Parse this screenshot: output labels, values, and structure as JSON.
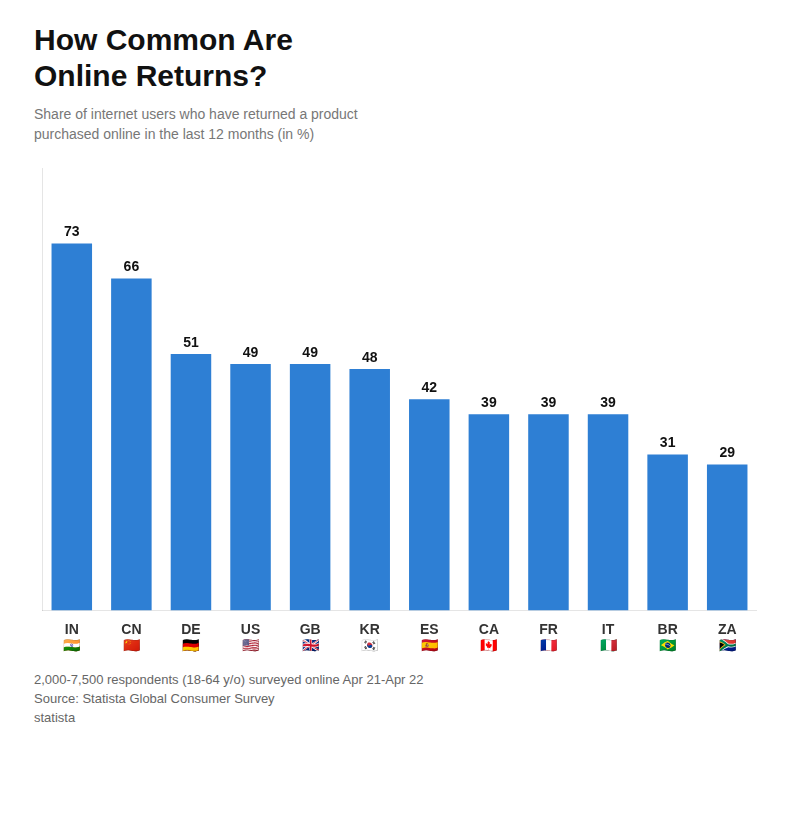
{
  "chart_data": {
    "type": "bar",
    "title": "How Common Are\nOnline Returns?",
    "subtitle": "Share of internet users who have returned a product\npurchased online in the last 12 months (in %)",
    "categories": [
      "IN",
      "CN",
      "DE",
      "US",
      "GB",
      "KR",
      "ES",
      "CA",
      "FR",
      "IT",
      "BR",
      "ZA"
    ],
    "values": [
      73,
      66,
      51,
      49,
      49,
      48,
      42,
      39,
      39,
      39,
      31,
      29
    ],
    "color": "#2E7FD4",
    "ylim": [
      0,
      88
    ],
    "yticks": [],
    "grid": false,
    "data_labels": true,
    "tick_labels": "x",
    "annotations": [
      {
        "text": "🇮🇳",
        "category": "IN"
      },
      {
        "text": "🇨🇳",
        "category": "CN"
      },
      {
        "text": "🇩🇪",
        "category": "DE"
      },
      {
        "text": "🇺🇸",
        "category": "US"
      },
      {
        "text": "🇬🇧",
        "category": "GB"
      },
      {
        "text": "🇰🇷",
        "category": "KR"
      },
      {
        "text": "🇪🇸",
        "category": "ES"
      },
      {
        "text": "🇨🇦",
        "category": "CA"
      },
      {
        "text": "🇫🇷",
        "category": "FR"
      },
      {
        "text": "🇮🇹",
        "category": "IT"
      },
      {
        "text": "🇧🇷",
        "category": "BR"
      },
      {
        "text": "🇿🇦",
        "category": "ZA"
      },
      {
        "text": "2,000-7,500 respondents (18-64 y/o) surveyed online Apr 21-Apr 22"
      },
      {
        "text": "Source: Statista Global Consumer Survey"
      },
      {
        "text": "statista"
      }
    ]
  }
}
